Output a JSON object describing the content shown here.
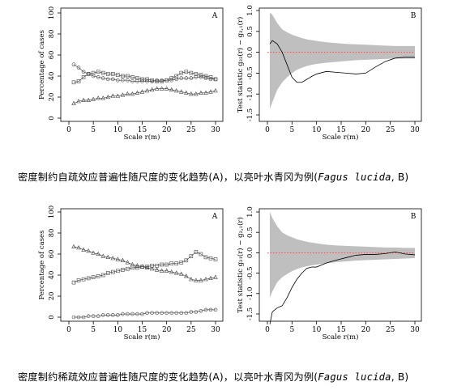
{
  "captions": {
    "top": {
      "pre": "密度制约自疏效应普遍性随尺度的变化趋势(A)，以亮叶水青冈为例(",
      "species": "Fagus lucida",
      "post": ", B)"
    },
    "bottom": {
      "pre": "密度制约稀疏效应普遍性随尺度的变化趋势(A)，以亮叶水青冈为例(",
      "species": "Fagus lucida",
      "post": ", B)"
    }
  },
  "chart_data": [
    {
      "panel": "top-A",
      "type": "line",
      "panel_label": "A",
      "xlabel": "Scale r(m)",
      "ylabel": "Percentage of cases",
      "xlim": [
        0,
        30
      ],
      "ylim": [
        0,
        100
      ],
      "xticks": [
        0,
        5,
        10,
        15,
        20,
        25,
        30
      ],
      "yticks": [
        0,
        20,
        40,
        60,
        80,
        100
      ],
      "x": [
        1,
        2,
        3,
        4,
        5,
        6,
        7,
        8,
        9,
        10,
        11,
        12,
        13,
        14,
        15,
        16,
        17,
        18,
        19,
        20,
        21,
        22,
        23,
        24,
        25,
        26,
        27,
        28,
        29,
        30
      ],
      "series": [
        {
          "marker": "circle",
          "values": [
            51,
            48,
            44,
            42,
            40,
            39,
            38,
            37,
            37,
            36,
            36,
            36,
            35,
            35,
            35,
            35,
            35,
            36,
            36,
            36,
            36,
            37,
            38,
            38,
            38,
            39,
            39,
            38,
            37,
            37
          ]
        },
        {
          "marker": "square",
          "values": [
            34,
            35,
            39,
            42,
            43,
            44,
            43,
            42,
            42,
            41,
            40,
            40,
            39,
            38,
            37,
            37,
            36,
            35,
            35,
            36,
            38,
            40,
            43,
            44,
            43,
            42,
            41,
            40,
            39,
            37
          ]
        },
        {
          "marker": "triangle",
          "values": [
            14,
            16,
            17,
            17,
            18,
            19,
            19,
            20,
            21,
            21,
            22,
            23,
            23,
            24,
            25,
            26,
            27,
            28,
            28,
            28,
            27,
            26,
            25,
            24,
            23,
            23,
            24,
            24,
            25,
            26
          ]
        }
      ]
    },
    {
      "panel": "top-B",
      "type": "line",
      "panel_label": "B",
      "xlabel": "Scale r(m)",
      "ylabel": "Test statistic g₂₂(r) − g₂,₁(r)",
      "xlim": [
        0,
        30
      ],
      "ylim": [
        -1.5,
        1.0
      ],
      "xticks": [
        0,
        5,
        10,
        15,
        20,
        25,
        30
      ],
      "yticks": [
        -1.5,
        -1.0,
        -0.5,
        0.0,
        0.5,
        1.0
      ],
      "x": [
        0.5,
        1,
        2,
        3,
        4,
        5,
        6,
        7,
        8,
        9,
        10,
        12,
        14,
        16,
        18,
        20,
        22,
        24,
        26,
        28,
        30
      ],
      "statistic": [
        0.2,
        0.28,
        0.2,
        0.0,
        -0.3,
        -0.6,
        -0.72,
        -0.72,
        -0.65,
        -0.58,
        -0.52,
        -0.46,
        -0.48,
        -0.5,
        -0.52,
        -0.5,
        -0.35,
        -0.22,
        -0.14,
        -0.12,
        -0.12
      ],
      "envelope_upper": [
        0.95,
        0.9,
        0.7,
        0.55,
        0.48,
        0.42,
        0.38,
        0.34,
        0.31,
        0.29,
        0.27,
        0.24,
        0.22,
        0.2,
        0.19,
        0.18,
        0.17,
        0.16,
        0.15,
        0.15,
        0.15
      ],
      "envelope_lower": [
        -1.35,
        -1.2,
        -0.9,
        -0.72,
        -0.6,
        -0.5,
        -0.42,
        -0.37,
        -0.33,
        -0.3,
        -0.28,
        -0.25,
        -0.23,
        -0.21,
        -0.19,
        -0.18,
        -0.17,
        -0.16,
        -0.15,
        -0.15,
        -0.15
      ],
      "reference_line": 0.0
    },
    {
      "panel": "bottom-A",
      "type": "line",
      "panel_label": "A",
      "xlabel": "Scale r(m)",
      "ylabel": "Percentage of cases",
      "xlim": [
        0,
        30
      ],
      "ylim": [
        0,
        100
      ],
      "xticks": [
        0,
        5,
        10,
        15,
        20,
        25,
        30
      ],
      "yticks": [
        0,
        20,
        40,
        60,
        80,
        100
      ],
      "x": [
        1,
        2,
        3,
        4,
        5,
        6,
        7,
        8,
        9,
        10,
        11,
        12,
        13,
        14,
        15,
        16,
        17,
        18,
        19,
        20,
        21,
        22,
        23,
        24,
        25,
        26,
        27,
        28,
        29,
        30
      ],
      "series": [
        {
          "marker": "triangle",
          "values": [
            67,
            66,
            64,
            63,
            61,
            60,
            58,
            57,
            56,
            55,
            54,
            52,
            50,
            49,
            48,
            47,
            46,
            45,
            44,
            44,
            43,
            42,
            41,
            39,
            36,
            35,
            35,
            36,
            37,
            38
          ]
        },
        {
          "marker": "square",
          "values": [
            33,
            35,
            36,
            37,
            38,
            39,
            40,
            42,
            43,
            44,
            45,
            46,
            47,
            47,
            48,
            48,
            49,
            49,
            50,
            50,
            51,
            51,
            52,
            54,
            58,
            62,
            60,
            57,
            56,
            55
          ]
        },
        {
          "marker": "circle",
          "values": [
            0,
            0,
            0,
            1,
            1,
            1,
            2,
            2,
            2,
            2,
            3,
            3,
            3,
            3,
            3,
            4,
            4,
            4,
            4,
            4,
            4,
            4,
            4,
            4,
            5,
            5,
            6,
            7,
            7,
            7
          ]
        }
      ]
    },
    {
      "panel": "bottom-B",
      "type": "line",
      "panel_label": "B",
      "xlabel": "Scale r(m)",
      "ylabel": "Test statistic g₂₁(r) − g₂,₁(r)",
      "xlim": [
        0,
        30
      ],
      "ylim": [
        -1.5,
        1.0
      ],
      "xticks": [
        0,
        5,
        10,
        15,
        20,
        25,
        30
      ],
      "yticks": [
        -1.5,
        -1.0,
        -0.5,
        0.0,
        0.5,
        1.0
      ],
      "x": [
        0.5,
        1,
        2,
        3,
        4,
        5,
        6,
        7,
        8,
        9,
        10,
        12,
        14,
        16,
        18,
        20,
        22,
        24,
        26,
        28,
        30
      ],
      "statistic": [
        -1.75,
        -1.45,
        -1.35,
        -1.3,
        -1.1,
        -0.85,
        -0.65,
        -0.5,
        -0.38,
        -0.35,
        -0.35,
        -0.25,
        -0.18,
        -0.12,
        -0.06,
        -0.04,
        -0.04,
        -0.02,
        0.02,
        -0.03,
        -0.05
      ],
      "envelope_upper": [
        1.0,
        0.85,
        0.65,
        0.5,
        0.43,
        0.38,
        0.33,
        0.3,
        0.27,
        0.25,
        0.23,
        0.2,
        0.18,
        0.17,
        0.16,
        0.15,
        0.14,
        0.13,
        0.13,
        0.12,
        0.12
      ],
      "envelope_lower": [
        -1.1,
        -0.95,
        -0.72,
        -0.6,
        -0.52,
        -0.45,
        -0.4,
        -0.36,
        -0.33,
        -0.31,
        -0.29,
        -0.26,
        -0.23,
        -0.21,
        -0.19,
        -0.18,
        -0.17,
        -0.16,
        -0.15,
        -0.14,
        -0.13
      ],
      "reference_line": 0.0
    }
  ]
}
